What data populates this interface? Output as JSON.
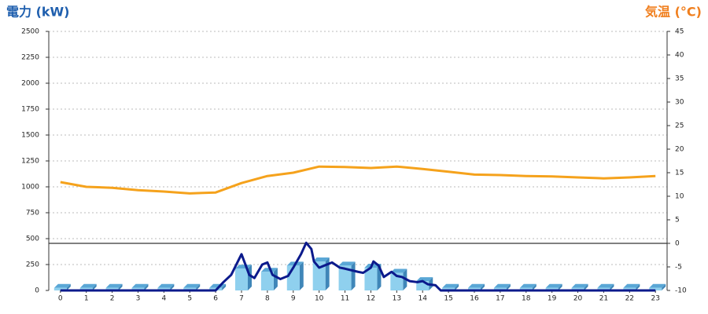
{
  "chart_data": {
    "type": "combo",
    "ylabel": "電力 (kW)",
    "y2label": "気温 (°C)",
    "x": [
      0,
      1,
      2,
      3,
      4,
      5,
      6,
      7,
      8,
      9,
      10,
      11,
      12,
      13,
      14,
      15,
      16,
      17,
      18,
      19,
      20,
      21,
      22,
      23
    ],
    "xlim": [
      -0.45,
      23.45
    ],
    "xticks": [
      0,
      1,
      2,
      3,
      4,
      5,
      6,
      7,
      8,
      9,
      10,
      11,
      12,
      13,
      14,
      15,
      16,
      17,
      18,
      19,
      20,
      21,
      22,
      23
    ],
    "ylim": [
      0,
      2500
    ],
    "yticks": [
      0,
      250,
      500,
      750,
      1000,
      1250,
      1500,
      1750,
      2000,
      2250,
      2500
    ],
    "y2lim": [
      -10,
      45
    ],
    "y2ticks": [
      -10,
      -5,
      0,
      5,
      10,
      15,
      20,
      25,
      30,
      35,
      40,
      45
    ],
    "y2_reference_line": 0,
    "grid": true,
    "series": [
      {
        "type": "bar",
        "color": "#8fd0ee",
        "values": [
          25,
          25,
          25,
          25,
          25,
          25,
          25,
          210,
          180,
          240,
          280,
          240,
          220,
          170,
          90,
          25,
          25,
          25,
          25,
          25,
          25,
          25,
          25,
          25
        ]
      },
      {
        "type": "line",
        "color": "#0b1a8c",
        "x": [
          0,
          6,
          6.3,
          6.6,
          7,
          7.3,
          7.5,
          7.8,
          8,
          8.2,
          8.5,
          8.8,
          9,
          9.3,
          9.5,
          9.7,
          9.8,
          10,
          10.2,
          10.5,
          10.8,
          11,
          11.5,
          11.7,
          12,
          12.1,
          12.3,
          12.5,
          12.8,
          13,
          13.2,
          13.5,
          13.8,
          14,
          14.2,
          14.5,
          14.7,
          15,
          23
        ],
        "values": [
          0,
          0,
          80,
          150,
          350,
          150,
          120,
          250,
          270,
          150,
          110,
          140,
          220,
          350,
          460,
          400,
          280,
          220,
          240,
          270,
          220,
          210,
          180,
          170,
          220,
          280,
          240,
          130,
          180,
          140,
          130,
          90,
          80,
          90,
          60,
          50,
          0,
          0,
          0
        ]
      },
      {
        "type": "line",
        "axis": "y2",
        "color": "#f5a21c",
        "values": [
          13,
          12,
          11.8,
          11.3,
          11,
          10.6,
          10.8,
          12.8,
          14.3,
          15,
          16.3,
          16.2,
          16,
          16.3,
          15.8,
          15.2,
          14.6,
          14.5,
          14.3,
          14.2,
          14,
          13.8,
          14,
          14.3
        ]
      }
    ]
  }
}
